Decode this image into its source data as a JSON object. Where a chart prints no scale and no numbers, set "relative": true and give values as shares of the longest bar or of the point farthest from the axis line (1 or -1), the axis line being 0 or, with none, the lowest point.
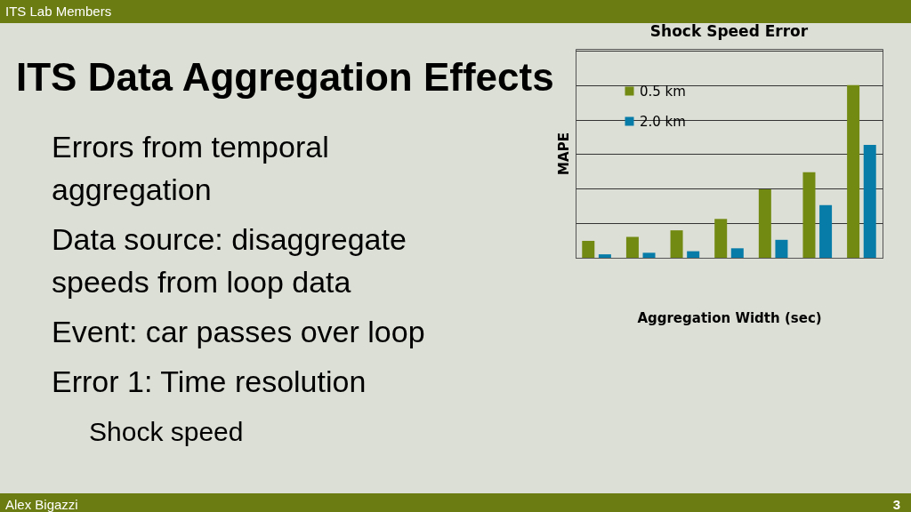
{
  "chart_data": {
    "type": "bar",
    "title": "Shock Speed Error",
    "xlabel": "Aggregation Width (sec)",
    "ylabel": "MAPE",
    "relative": true,
    "grid": "y",
    "legend": "top left",
    "categories": [
      null,
      null,
      null,
      null,
      null,
      null,
      null
    ],
    "series": [
      {
        "name": "0.5 km",
        "color": "#738a12",
        "values": [
          0.098,
          0.121,
          0.159,
          0.225,
          0.396,
          0.495,
          1
        ]
      },
      {
        "name": "2.0 km",
        "color": "#087ca8",
        "values": [
          0.02,
          0.029,
          0.038,
          0.055,
          0.104,
          0.305,
          0.654
        ]
      }
    ],
    "annotations": [
      "ITS Lab Members",
      "ITS Data Aggregation Effects",
      "Errors from temporal aggregation",
      "Data source: disaggregate speeds from loop data",
      "Event: car passes over loop",
      "Error 1: Time resolution",
      "Shock speed",
      "Alex Bigazzi",
      "3"
    ]
  }
}
